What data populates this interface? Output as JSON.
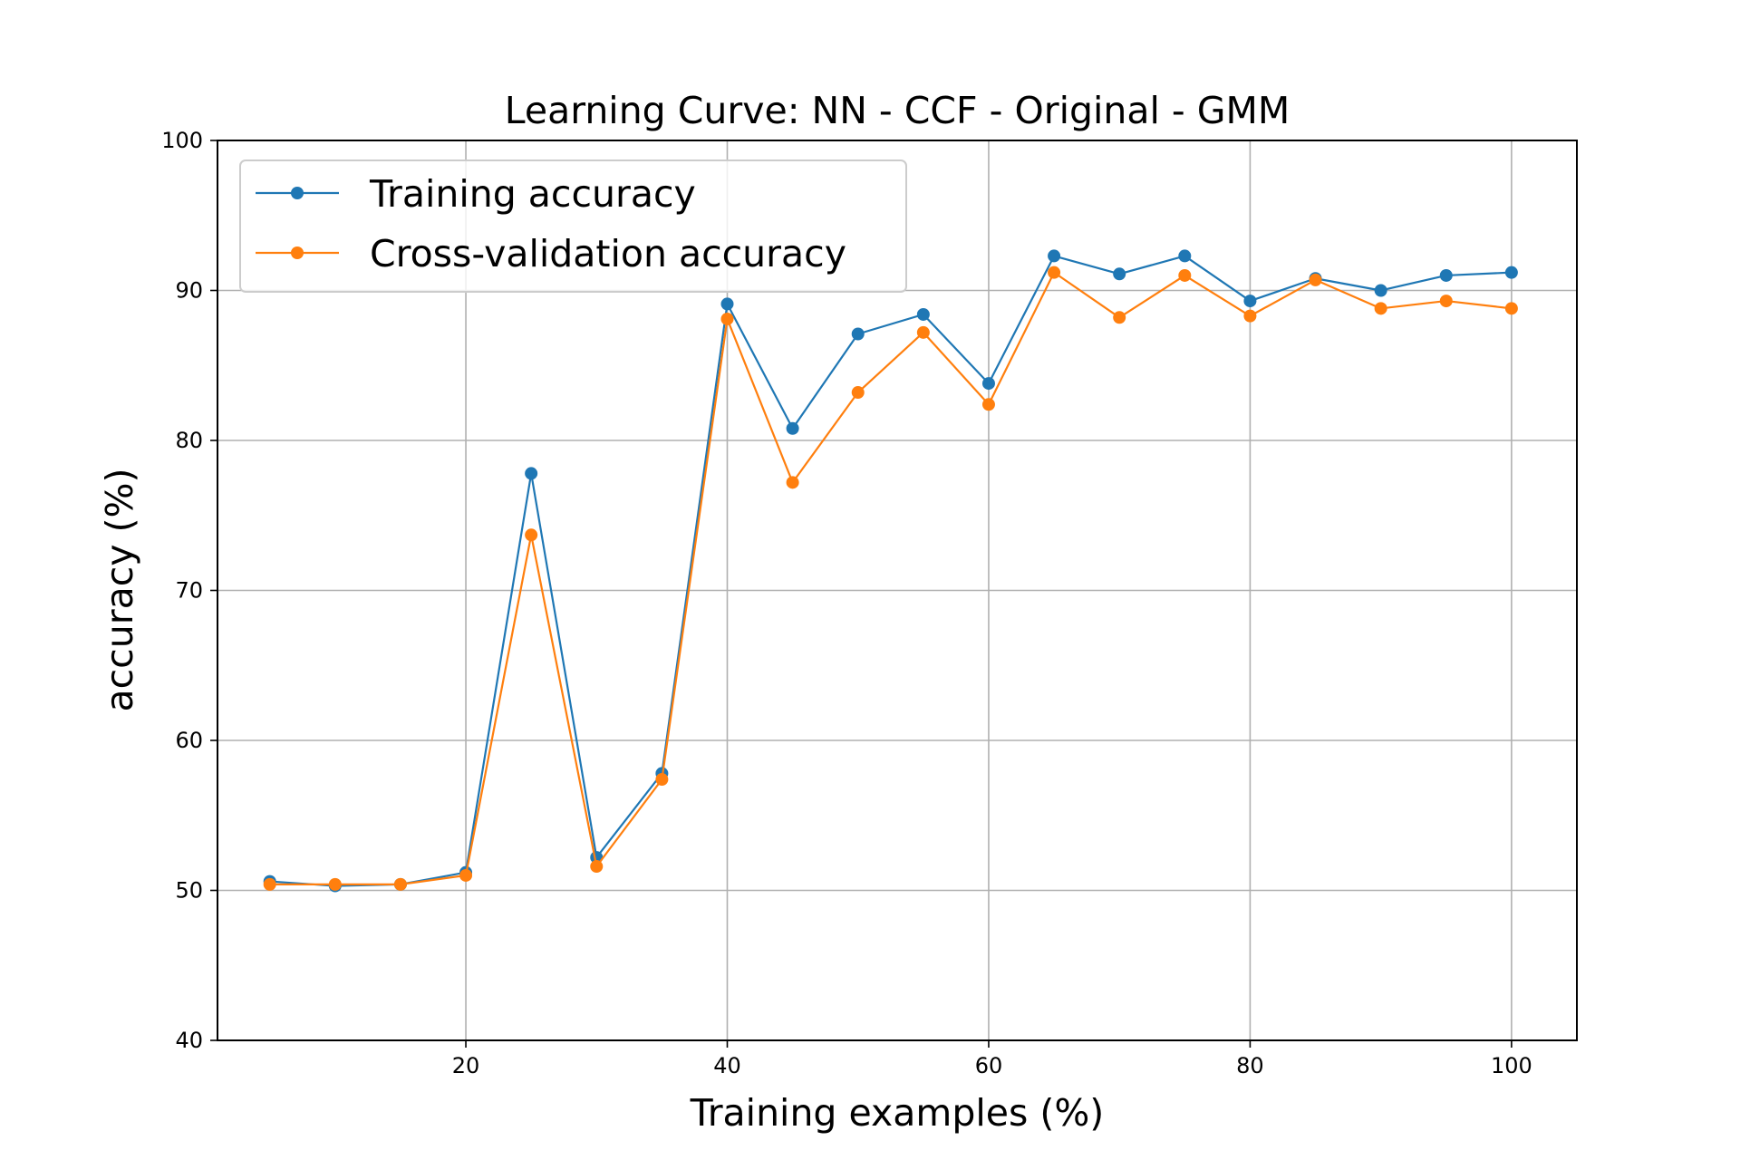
{
  "chart_data": {
    "type": "line",
    "title": "Learning Curve: NN - CCF - Original - GMM",
    "xlabel": "Training examples (%)",
    "ylabel": "accuracy (%)",
    "xlim": [
      1,
      105
    ],
    "ylim": [
      40,
      100
    ],
    "xticks": [
      20,
      40,
      60,
      80,
      100
    ],
    "yticks": [
      40,
      50,
      60,
      70,
      80,
      90,
      100
    ],
    "grid": true,
    "legend_position": "top-left",
    "x": [
      5,
      10,
      15,
      20,
      25,
      30,
      35,
      40,
      45,
      50,
      55,
      60,
      65,
      70,
      75,
      80,
      85,
      90,
      95,
      100
    ],
    "series": [
      {
        "name": "Training accuracy",
        "color": "#1f77b4",
        "marker": "circle",
        "values": [
          50.6,
          50.3,
          50.4,
          51.2,
          77.8,
          52.2,
          57.8,
          89.1,
          80.8,
          87.1,
          88.4,
          83.8,
          92.3,
          91.1,
          92.3,
          89.3,
          90.8,
          90.0,
          91.0,
          91.2
        ]
      },
      {
        "name": "Cross-validation accuracy",
        "color": "#ff7f0e",
        "marker": "circle",
        "values": [
          50.4,
          50.4,
          50.4,
          51.0,
          73.7,
          51.6,
          57.4,
          88.1,
          77.2,
          83.2,
          87.2,
          82.4,
          91.2,
          88.2,
          91.0,
          88.3,
          90.7,
          88.8,
          89.3,
          88.8
        ]
      }
    ]
  }
}
